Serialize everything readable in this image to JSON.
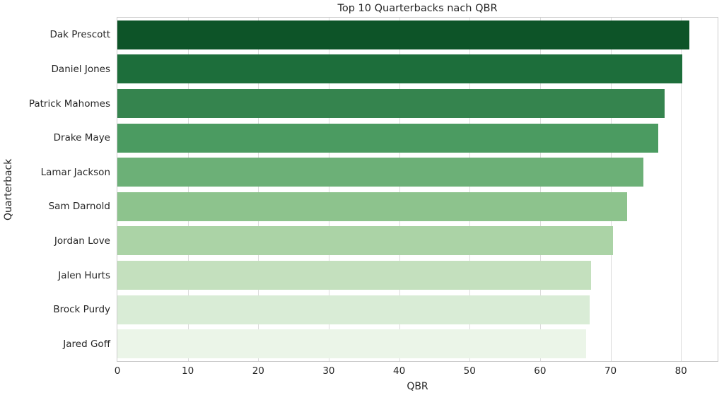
{
  "chart_data": {
    "type": "bar",
    "orientation": "horizontal",
    "title": "Top 10 Quarterbacks nach QBR",
    "xlabel": "QBR",
    "ylabel": "Quarterback",
    "categories": [
      "Dak Prescott",
      "Daniel Jones",
      "Patrick Mahomes",
      "Drake Maye",
      "Lamar Jackson",
      "Sam Darnold",
      "Jordan Love",
      "Jalen Hurts",
      "Brock Purdy",
      "Jared Goff"
    ],
    "values": [
      81.2,
      80.2,
      77.7,
      76.8,
      74.7,
      72.4,
      70.3,
      67.2,
      67.0,
      66.5
    ],
    "bar_colors": [
      "#0d5428",
      "#1d6e3b",
      "#35844e",
      "#4b9b61",
      "#6cb077",
      "#8dc38d",
      "#abd3a6",
      "#c4e0be",
      "#d9ecd6",
      "#ebf5e8"
    ],
    "x_ticks": [
      0,
      10,
      20,
      30,
      40,
      50,
      60,
      70,
      80
    ],
    "xlim": [
      0,
      85.2
    ],
    "grid": "vertical-gridlines-only",
    "legend": "none",
    "palette": "Greens dark-to-light"
  },
  "colors": {
    "background": "#ffffff",
    "spine": "#cccccc",
    "gridline": "#dcdcdc",
    "text": "#262626"
  }
}
